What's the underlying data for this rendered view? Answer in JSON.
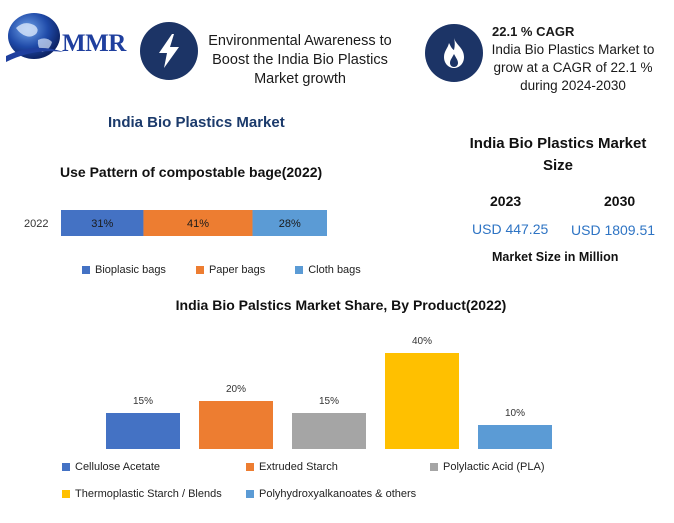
{
  "brand": {
    "logo_text": "MMR"
  },
  "header": {
    "headline": "Environmental Awareness to Boost the India Bio Plastics Market growth",
    "headline_lines": [
      "Environmental Awareness to",
      "Boost the India Bio Plastics",
      "Market growth"
    ],
    "cagr_title": "22.1 % CAGR",
    "cagr_lines": [
      "India Bio Plastics Market to",
      "grow at a CAGR of 22.1 %",
      "during  2024-2030"
    ]
  },
  "market_title": "India Bio Plastics Market",
  "market_size": {
    "title_lines": [
      "India Bio Plastics Market",
      "Size"
    ],
    "years": [
      "2023",
      "2030"
    ],
    "values": [
      "USD 447.25",
      "USD 1809.51"
    ],
    "note": "Market Size in Million"
  },
  "colors": {
    "navy": "#1c3466",
    "bioplastic": "#4472c4",
    "paper": "#ed7d31",
    "cloth": "#5b9bd5",
    "cellulose": "#4472c4",
    "extruded": "#ed7d31",
    "pla": "#a5a5a5",
    "thermoplastic": "#ffc000",
    "pha": "#5b9bd5"
  },
  "icons": [
    "globe-icon",
    "lightning-icon",
    "flame-icon"
  ],
  "chart_data": [
    {
      "type": "bar",
      "orientation": "horizontal",
      "stacked": true,
      "title": "Use Pattern of compostable bage(2022)",
      "categories": [
        "2022"
      ],
      "series": [
        {
          "name": "Bioplasic bags",
          "values": [
            31
          ],
          "label": "31%"
        },
        {
          "name": "Paper bags",
          "values": [
            41
          ],
          "label": "41%"
        },
        {
          "name": "Cloth bags",
          "values": [
            28
          ],
          "label": "28%"
        }
      ],
      "legend": "bottom"
    },
    {
      "type": "bar",
      "title": "India Bio Palstics Market Share, By Product(2022)",
      "categories": [
        "Cellulose Acetate",
        "Extruded Starch",
        "Polylactic Acid (PLA)",
        "Thermoplastic Starch / Blends",
        "Polyhydroxyalkanoates & others"
      ],
      "values": [
        15,
        20,
        15,
        40,
        10
      ],
      "value_labels": [
        "15%",
        "20%",
        "15%",
        "40%",
        "10%"
      ],
      "ylim": [
        0,
        40
      ],
      "grid": false,
      "legend": "bottom"
    }
  ]
}
